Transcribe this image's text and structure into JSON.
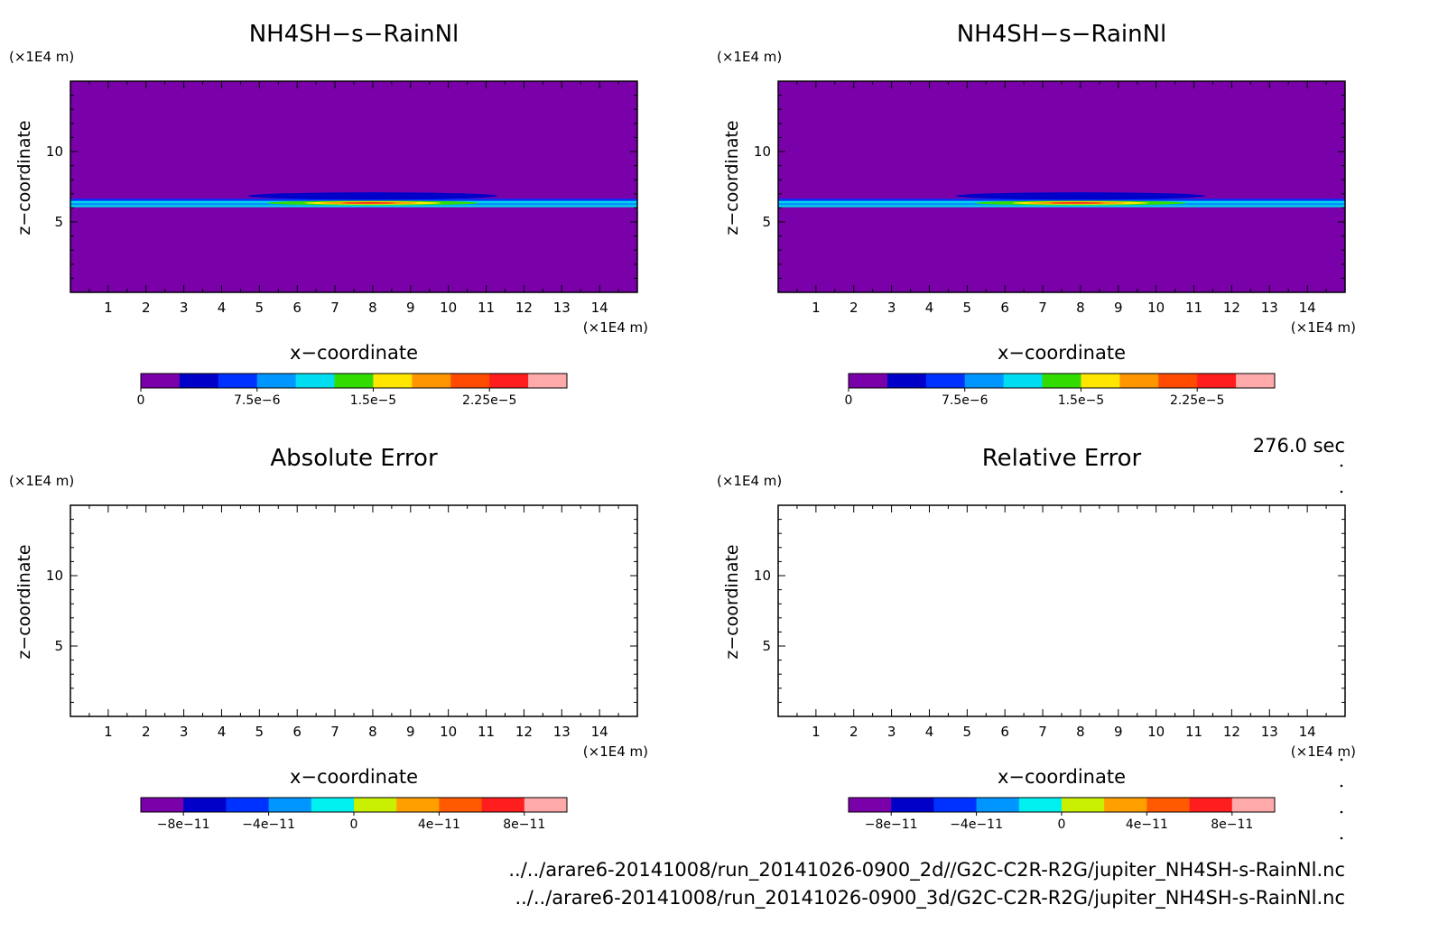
{
  "timestamp": "276.0 sec",
  "files": [
    "../../arare6-20141008/run_20141026-0900_2d//G2C-C2R-R2G/jupiter_NH4SH-s-RainNl.nc",
    "../../arare6-20141008/run_20141026-0900_3d/G2C-C2R-R2G/jupiter_NH4SH-s-RainNl.nc"
  ],
  "chart_data": [
    {
      "type": "heatmap",
      "title": "NH4SH−s−RainNl",
      "xlabel": "x−coordinate",
      "ylabel": "z−coordinate",
      "x_unit": "(×1E4 m)",
      "y_unit": "(×1E4 m)",
      "xlim": [
        0,
        15
      ],
      "ylim": [
        0,
        15
      ],
      "x_ticks": [
        1,
        2,
        3,
        4,
        5,
        6,
        7,
        8,
        9,
        10,
        11,
        12,
        13,
        14
      ],
      "y_ticks": [
        5,
        10
      ],
      "field": "thin layer near z = 6.3 (×1E4 m), maximum near x = 8",
      "colorbar": {
        "colors": [
          "#7a00aa",
          "#0000c8",
          "#0032ff",
          "#0096ff",
          "#00dcf0",
          "#32dc00",
          "#ffe600",
          "#ff9600",
          "#ff4b00",
          "#ff1e1e",
          "#ffaaaa"
        ],
        "tick_labels": [
          "0",
          "7.5e−6",
          "1.5e−5",
          "2.25e−5"
        ]
      }
    },
    {
      "type": "heatmap",
      "title": "NH4SH−s−RainNl",
      "xlabel": "x−coordinate",
      "ylabel": "z−coordinate",
      "x_unit": "(×1E4 m)",
      "y_unit": "(×1E4 m)",
      "xlim": [
        0,
        15
      ],
      "ylim": [
        0,
        15
      ],
      "x_ticks": [
        1,
        2,
        3,
        4,
        5,
        6,
        7,
        8,
        9,
        10,
        11,
        12,
        13,
        14
      ],
      "y_ticks": [
        5,
        10
      ],
      "field": "thin layer near z = 6.3 (×1E4 m), maximum near x = 8",
      "colorbar": {
        "colors": [
          "#7a00aa",
          "#0000c8",
          "#0032ff",
          "#0096ff",
          "#00dcf0",
          "#32dc00",
          "#ffe600",
          "#ff9600",
          "#ff4b00",
          "#ff1e1e",
          "#ffaaaa"
        ],
        "tick_labels": [
          "0",
          "7.5e−6",
          "1.5e−5",
          "2.25e−5"
        ]
      }
    },
    {
      "type": "heatmap",
      "title": "Absolute Error",
      "xlabel": "x−coordinate",
      "ylabel": "z−coordinate",
      "x_unit": "(×1E4 m)",
      "y_unit": "(×1E4 m)",
      "xlim": [
        0,
        15
      ],
      "ylim": [
        0,
        15
      ],
      "x_ticks": [
        1,
        2,
        3,
        4,
        5,
        6,
        7,
        8,
        9,
        10,
        11,
        12,
        13,
        14
      ],
      "y_ticks": [
        5,
        10
      ],
      "field": "empty",
      "colorbar": {
        "colors": [
          "#7a00aa",
          "#0000c8",
          "#0032ff",
          "#0096ff",
          "#00f0f0",
          "#c8f000",
          "#ffa000",
          "#ff5a00",
          "#ff1e1e",
          "#ffaaaa"
        ],
        "tick_labels": [
          "−8e−11",
          "−4e−11",
          "0",
          "4e−11",
          "8e−11"
        ]
      }
    },
    {
      "type": "heatmap",
      "title": "Relative Error",
      "xlabel": "x−coordinate",
      "ylabel": "z−coordinate",
      "x_unit": "(×1E4 m)",
      "y_unit": "(×1E4 m)",
      "xlim": [
        0,
        15
      ],
      "ylim": [
        0,
        15
      ],
      "x_ticks": [
        1,
        2,
        3,
        4,
        5,
        6,
        7,
        8,
        9,
        10,
        11,
        12,
        13,
        14
      ],
      "y_ticks": [
        5,
        10
      ],
      "field": "empty",
      "colorbar": {
        "colors": [
          "#7a00aa",
          "#0000c8",
          "#0032ff",
          "#0096ff",
          "#00f0f0",
          "#c8f000",
          "#ffa000",
          "#ff5a00",
          "#ff1e1e",
          "#ffaaaa"
        ],
        "tick_labels": [
          "−8e−11",
          "−4e−11",
          "0",
          "4e−11",
          "8e−11"
        ]
      }
    }
  ]
}
